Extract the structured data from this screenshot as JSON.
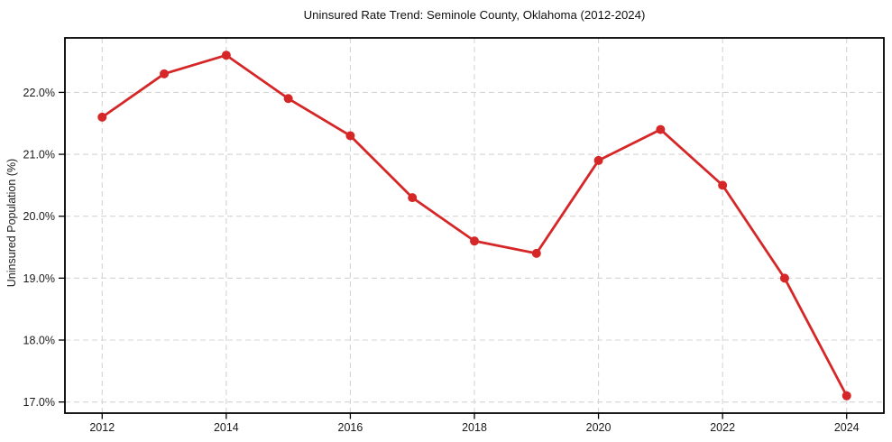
{
  "chart_data": {
    "type": "line",
    "title": "Uninsured Rate Trend: Seminole County, Oklahoma (2012-2024)",
    "xlabel": "",
    "ylabel": "Uninsured Population (%)",
    "x": [
      2012,
      2013,
      2014,
      2015,
      2016,
      2017,
      2018,
      2019,
      2020,
      2021,
      2022,
      2023,
      2024
    ],
    "series": [
      {
        "name": "Uninsured Population (%)",
        "values": [
          21.6,
          22.3,
          22.6,
          21.9,
          21.3,
          20.3,
          19.6,
          19.4,
          20.9,
          21.4,
          20.5,
          19.0,
          17.1
        ],
        "color": "#d62728"
      }
    ],
    "x_ticks": [
      2012,
      2014,
      2016,
      2018,
      2020,
      2022,
      2024
    ],
    "x_tick_labels": [
      "2012",
      "2014",
      "2016",
      "2018",
      "2020",
      "2022",
      "2024"
    ],
    "y_ticks": [
      17.0,
      18.0,
      19.0,
      20.0,
      21.0,
      22.0
    ],
    "y_tick_labels": [
      "17.0%",
      "18.0%",
      "19.0%",
      "20.0%",
      "21.0%",
      "22.0%"
    ],
    "xlim": [
      2011.4,
      2024.6
    ],
    "ylim": [
      16.82,
      22.88
    ],
    "grid": true,
    "grid_style": "dashed",
    "legend": "none",
    "colors": {
      "line": "#d62728",
      "marker": "#d62728",
      "grid": "#d4d4d4",
      "spine": "#000000",
      "tick": "#000000",
      "text": "#1a1a1a",
      "background": "#ffffff"
    }
  }
}
